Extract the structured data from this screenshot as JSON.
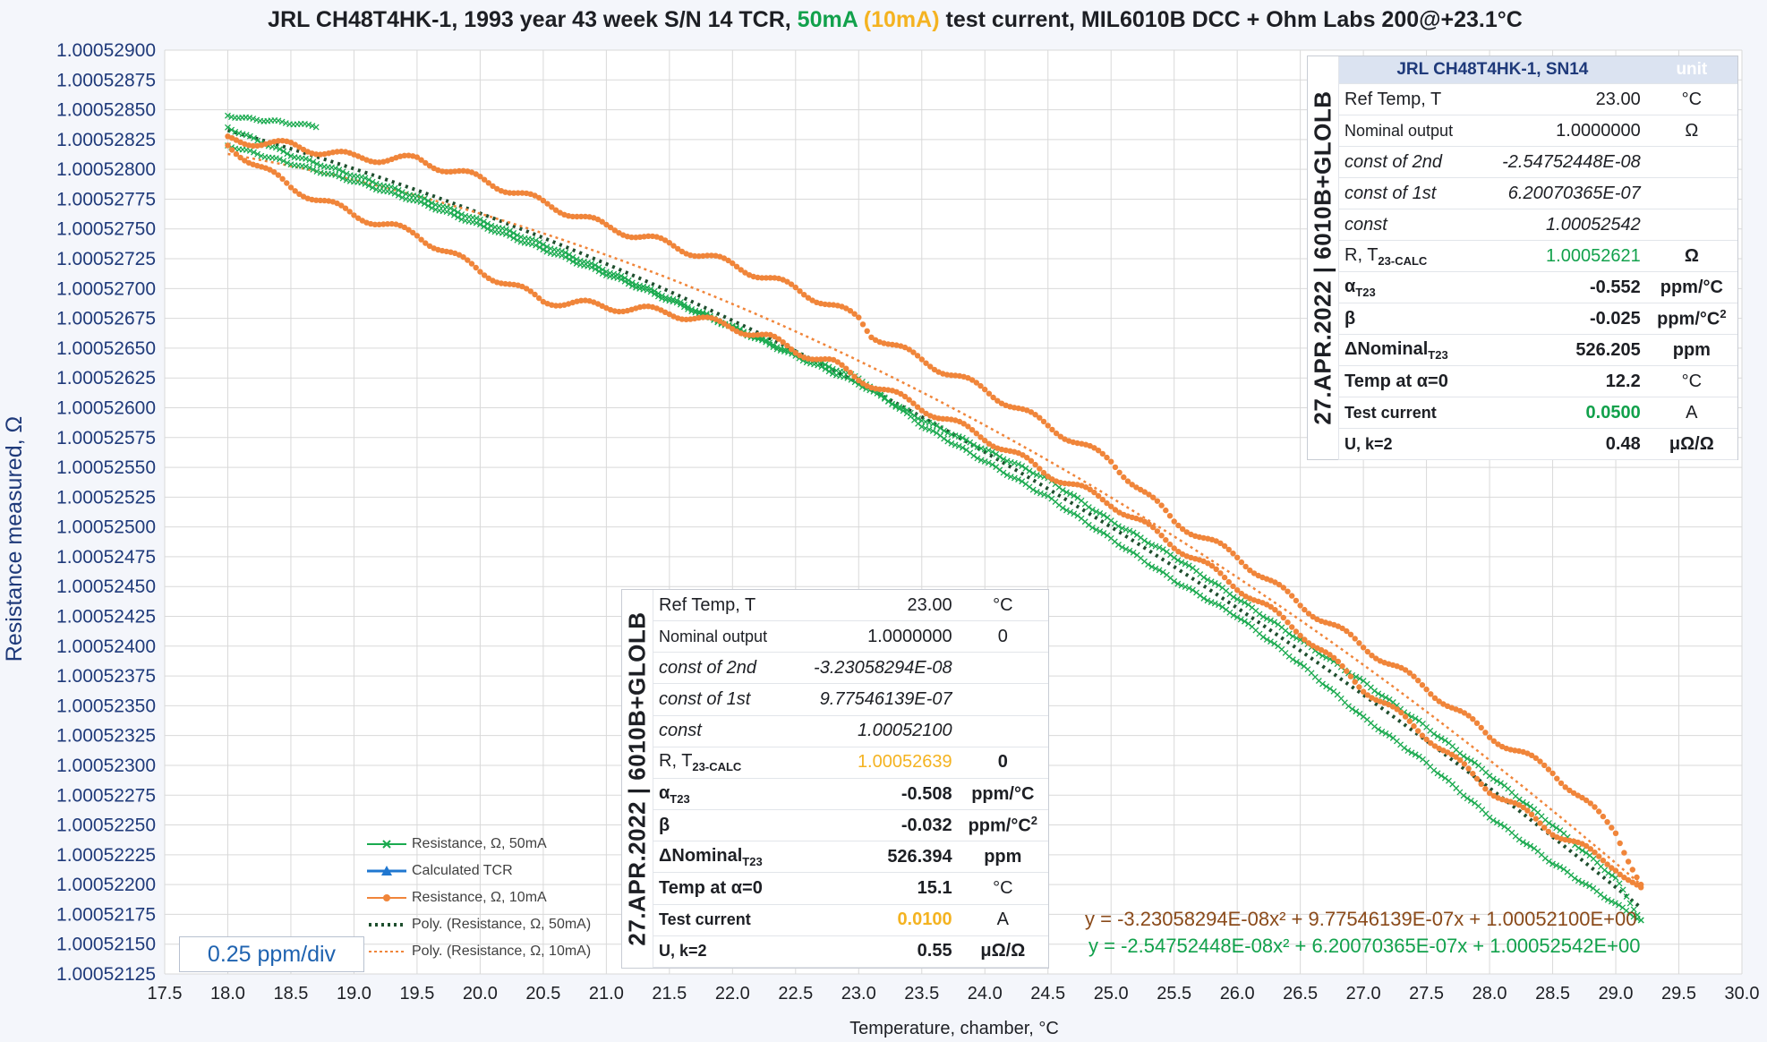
{
  "chart_data": {
    "type": "scatter",
    "title": {
      "prefix": "JRL CH48T4HK-1, 1993 year 43 week S/N 14 TCR, ",
      "current_50": "50mA",
      "current_10": "(10mA)",
      "suffix": " test current, MIL6010B DCC + Ohm Labs 200@+23.1°C"
    },
    "xlabel": "Temperature, chamber, °C",
    "ylabel": "Resistance measured, Ω",
    "xlim": [
      17.5,
      30.0
    ],
    "ylim": [
      1.00052125,
      1.000529
    ],
    "x_ticks": [
      "17.5",
      "18.0",
      "18.5",
      "19.0",
      "19.5",
      "20.0",
      "20.5",
      "21.0",
      "21.5",
      "22.0",
      "22.5",
      "23.0",
      "23.5",
      "24.0",
      "24.5",
      "25.0",
      "25.5",
      "26.0",
      "26.5",
      "27.0",
      "27.5",
      "28.0",
      "28.5",
      "29.0",
      "29.5",
      "30.0"
    ],
    "y_ticks": [
      "1.00052900",
      "1.00052875",
      "1.00052850",
      "1.00052825",
      "1.00052800",
      "1.00052775",
      "1.00052750",
      "1.00052725",
      "1.00052700",
      "1.00052675",
      "1.00052650",
      "1.00052625",
      "1.00052600",
      "1.00052575",
      "1.00052550",
      "1.00052525",
      "1.00052500",
      "1.00052475",
      "1.00052450",
      "1.00052425",
      "1.00052400",
      "1.00052375",
      "1.00052350",
      "1.00052325",
      "1.00052300",
      "1.00052275",
      "1.00052250",
      "1.00052225",
      "1.00052200",
      "1.00052175",
      "1.00052150",
      "1.00052125"
    ],
    "grid": true,
    "series": [
      {
        "name": "Resistance, Ω, 50mA",
        "color": "#1aaa4f",
        "marker": "x",
        "segments": [
          {
            "x": [
              18.0,
              18.2,
              18.4,
              18.7
            ],
            "y": [
              1.00052845,
              1.00052842,
              1.0005284,
              1.00052836
            ]
          },
          {
            "x": [
              18.0,
              18.5,
              19.0,
              19.5,
              20.0,
              20.5,
              21.0,
              21.5,
              22.0,
              22.5,
              23.0,
              23.5,
              24.0,
              24.5,
              25.0,
              25.5,
              26.0,
              26.5,
              27.0,
              27.5,
              28.0,
              28.5,
              29.0,
              29.2
            ],
            "y": [
              1.0005282,
              1.00052805,
              1.0005279,
              1.00052773,
              1.00052753,
              1.00052733,
              1.00052712,
              1.0005269,
              1.00052667,
              1.00052643,
              1.0005262,
              1.0005259,
              1.00052565,
              1.0005254,
              1.00052505,
              1.00052475,
              1.0005244,
              1.00052405,
              1.0005237,
              1.00052332,
              1.00052292,
              1.0005225,
              1.00052205,
              1.0005217
            ]
          },
          {
            "x": [
              29.2,
              28.5,
              28.0,
              27.5,
              27.0,
              26.5,
              26.0,
              25.5,
              25.0,
              24.5,
              24.0,
              23.5,
              23.0,
              22.5,
              22.0,
              21.5,
              21.0,
              20.5,
              20.0,
              19.5,
              19.0,
              18.5,
              18.0
            ],
            "y": [
              1.0005217,
              1.00052218,
              1.00052257,
              1.00052302,
              1.0005234,
              1.00052385,
              1.00052425,
              1.00052455,
              1.0005249,
              1.00052525,
              1.00052555,
              1.00052585,
              1.00052625,
              1.00052645,
              1.00052668,
              1.00052692,
              1.00052715,
              1.00052737,
              1.00052757,
              1.00052777,
              1.00052795,
              1.00052812,
              1.00052835
            ]
          }
        ]
      },
      {
        "name": "Calculated TCR",
        "color": "#1f77d0",
        "marker": "triangle",
        "segments": []
      },
      {
        "name": "Resistance, Ω, 10mA",
        "color": "#f0853a",
        "marker": "dot",
        "segments": [
          {
            "x": [
              18.0,
              18.5,
              19.0,
              19.5,
              20.0,
              20.5,
              21.0,
              21.5,
              22.0,
              22.3,
              22.5,
              22.8,
              23.0,
              23.5,
              24.0,
              24.5,
              25.0,
              25.5,
              26.0,
              26.5,
              27.0,
              27.5,
              28.0,
              28.5,
              29.0,
              29.2
            ],
            "y": [
              1.0005282,
              1.00052785,
              1.00052762,
              1.00052745,
              1.00052715,
              1.0005269,
              1.00052685,
              1.0005268,
              1.00052668,
              1.00052658,
              1.00052648,
              1.00052637,
              1.00052625,
              1.000526,
              1.00052575,
              1.00052545,
              1.0005252,
              1.00052485,
              1.0005245,
              1.00052412,
              1.00052365,
              1.00052325,
              1.0005228,
              1.00052245,
              1.00052215,
              1.00052195
            ]
          },
          {
            "x": [
              29.2,
              29.0,
              28.5,
              28.0,
              27.5,
              27.0,
              26.5,
              26.0,
              25.5,
              25.0,
              24.5,
              24.0,
              23.5,
              23.1,
              23.0,
              22.5,
              22.0,
              21.5,
              21.0,
              20.5,
              20.0,
              19.5,
              19.0,
              18.5,
              18.0
            ],
            "y": [
              1.000522,
              1.00052245,
              1.00052295,
              1.00052325,
              1.00052365,
              1.000524,
              1.00052435,
              1.00052475,
              1.00052505,
              1.00052555,
              1.00052585,
              1.00052615,
              1.0005264,
              1.00052662,
              1.00052675,
              1.000527,
              1.0005272,
              1.00052737,
              1.00052752,
              1.00052772,
              1.00052792,
              1.00052808,
              1.0005281,
              1.0005282,
              1.00052825
            ]
          }
        ]
      }
    ],
    "fits": [
      {
        "name": "Poly. (Resistance, Ω, 50mA)",
        "color": "#1e4f2e",
        "a": -2.54752448e-08,
        "b": 6.20070365e-07,
        "c": 1.00052542,
        "x_range": [
          18.0,
          29.2
        ]
      },
      {
        "name": "Poly. (Resistance, Ω, 10mA)",
        "color": "#f0853a",
        "a": -3.23058294e-08,
        "b": 9.77546139e-07,
        "c": 1.000521,
        "x_range": [
          18.0,
          29.2
        ]
      }
    ],
    "equation_10mA": "y = -3.23058294E-08x² + 9.77546139E-07x + 1.00052100E+00",
    "equation_50mA": "y = -2.54752448E-08x² + 6.20070365E-07x + 1.00052542E+00",
    "scale_note": "0.25 ppm/div"
  },
  "table_50mA": {
    "sidebar": "27.APR.2022 | 6010B+GLOLB",
    "header_title": "JRL CH48T4HK-1, SN14",
    "header_unit": "unit",
    "rows": {
      "ref_temp": {
        "label": "Ref Temp, T",
        "value": "23.00",
        "unit": "°C"
      },
      "nominal": {
        "label": "Nominal output",
        "value": "1.0000000",
        "unit": "Ω"
      },
      "c2": {
        "label": "const of 2nd",
        "value": "-2.54752448E-08"
      },
      "c1": {
        "label": "const of 1st",
        "value": "6.20070365E-07"
      },
      "c0": {
        "label": "const",
        "value": "1.00052542"
      },
      "rcalc": {
        "label": "R, T",
        "label_sub": "23-CALC",
        "value": "1.00052621",
        "unit": "Ω"
      },
      "alpha": {
        "label": "α",
        "label_sub": "T23",
        "value": "-0.552",
        "unit": "ppm/°C"
      },
      "beta": {
        "label": "β",
        "value": "-0.025",
        "unit": "ppm/°C",
        "unit_sup": "2"
      },
      "dnom": {
        "label": "ΔNominal",
        "label_sub": "T23",
        "value": "526.205",
        "unit": "ppm"
      },
      "tzero": {
        "label": "Temp at α=0",
        "value": "12.2",
        "unit": "°C"
      },
      "current": {
        "label": "Test current",
        "value": "0.0500",
        "unit": "A"
      },
      "u": {
        "label": "U, k=2",
        "value": "0.48",
        "unit": "μΩ/Ω"
      }
    }
  },
  "table_10mA": {
    "sidebar": "27.APR.2022 | 6010B+GLOLB",
    "rows": {
      "ref_temp": {
        "label": "Ref Temp, T",
        "value": "23.00",
        "unit": "°C"
      },
      "nominal": {
        "label": "Nominal output",
        "value": "1.0000000",
        "unit": "0"
      },
      "c2": {
        "label": "const of 2nd",
        "value": "-3.23058294E-08"
      },
      "c1": {
        "label": "const of 1st",
        "value": "9.77546139E-07"
      },
      "c0": {
        "label": "const",
        "value": "1.00052100"
      },
      "rcalc": {
        "label": "R, T",
        "label_sub": "23-CALC",
        "value": "1.00052639",
        "unit": "0"
      },
      "alpha": {
        "label": "α",
        "label_sub": "T23",
        "value": "-0.508",
        "unit": "ppm/°C"
      },
      "beta": {
        "label": "β",
        "value": "-0.032",
        "unit": "ppm/°C",
        "unit_sup": "2"
      },
      "dnom": {
        "label": "ΔNominal",
        "label_sub": "T23",
        "value": "526.394",
        "unit": "ppm"
      },
      "tzero": {
        "label": "Temp at α=0",
        "value": "15.1",
        "unit": "°C"
      },
      "current": {
        "label": "Test current",
        "value": "0.0100",
        "unit": "A"
      },
      "u": {
        "label": "U, k=2",
        "value": "0.55",
        "unit": "μΩ/Ω"
      }
    }
  }
}
